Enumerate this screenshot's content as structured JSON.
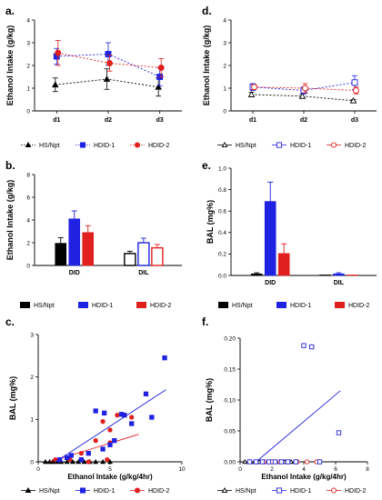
{
  "colors": {
    "hs": "#000000",
    "hdid1": "#1f22e0",
    "hdid2": "#e01f1f"
  },
  "panels": {
    "a": {
      "label": "a.",
      "ylabel": "Ethanol Intake (g/kg)",
      "yticks": [
        "0",
        "1",
        "2",
        "3",
        "4"
      ],
      "legend": [
        "HS/Npt",
        "HDID-1",
        "HDID-2"
      ]
    },
    "b": {
      "label": "b.",
      "ylabel": "Ethanol Intake (g/kg)",
      "yticks": [
        "0",
        "2",
        "4",
        "6",
        "8"
      ],
      "legend": [
        "HS/Npt",
        "HDID-1",
        "HDID-2"
      ]
    },
    "c": {
      "label": "c.",
      "ylabel": "BAL (mg%)",
      "xlabel": "Ethanol Intake (g/kg/4hr)",
      "yticks": [
        "0",
        "1",
        "2",
        "3"
      ],
      "xticks": [
        "0",
        "5",
        "10"
      ],
      "legend": [
        "HS/Npt",
        "HDID-1",
        "HDID-2"
      ]
    },
    "d": {
      "label": "d.",
      "ylabel": "Ethanol Intake (g/kg)",
      "yticks": [
        "0",
        "1",
        "2",
        "3",
        "4"
      ],
      "legend": [
        "HS/Npt",
        "HDID-1",
        "HDID-2"
      ]
    },
    "e": {
      "label": "e.",
      "ylabel": "BAL (mg%)",
      "yticks": [
        "0.0",
        "0.2",
        "0.4",
        "0.6",
        "0.8",
        "1.0"
      ],
      "legend": [
        "HS/Npt",
        "HDID-1",
        "HDID-2"
      ]
    },
    "f": {
      "label": "f.",
      "ylabel": "BAL (mg%)",
      "xlabel": "Ethanol Intake (g/kg/4hr)",
      "yticks": [
        "0.00",
        "0.05",
        "0.10",
        "0.15",
        "0.20"
      ],
      "xticks": [
        "0",
        "2",
        "4",
        "6",
        "8"
      ],
      "legend": [
        "HS/Npt",
        "HDID-1",
        "HDID-2"
      ]
    }
  },
  "chart_data": [
    {
      "panel": "a",
      "type": "line",
      "categories": [
        "d1",
        "d2",
        "d3"
      ],
      "ylim": [
        0,
        4
      ],
      "series": [
        {
          "name": "HS/Npt",
          "values": [
            1.15,
            1.4,
            1.05
          ],
          "errors": [
            0.3,
            0.45,
            0.4
          ]
        },
        {
          "name": "HDID-1",
          "values": [
            2.4,
            2.5,
            1.5
          ],
          "errors": [
            0.35,
            0.5,
            0.4
          ]
        },
        {
          "name": "HDID-2",
          "values": [
            2.55,
            2.1,
            1.9
          ],
          "errors": [
            0.55,
            0.35,
            0.4
          ]
        }
      ]
    },
    {
      "panel": "b",
      "type": "bar",
      "categories": [
        "DID",
        "DIL"
      ],
      "ylim": [
        0,
        8
      ],
      "series": [
        {
          "name": "HS/Npt",
          "values": [
            1.95,
            1.05
          ],
          "errors": [
            0.5,
            0.2
          ]
        },
        {
          "name": "HDID-1",
          "values": [
            4.1,
            2.0
          ],
          "errors": [
            0.7,
            0.4
          ]
        },
        {
          "name": "HDID-2",
          "values": [
            2.9,
            1.55
          ],
          "errors": [
            0.6,
            0.3
          ]
        }
      ]
    },
    {
      "panel": "c",
      "type": "scatter",
      "xlim": [
        0,
        10
      ],
      "ylim": [
        0,
        3
      ],
      "series": [
        {
          "name": "HS/Npt",
          "points": [
            [
              0.5,
              0
            ],
            [
              0.8,
              0
            ],
            [
              1.0,
              0
            ],
            [
              1.3,
              0
            ],
            [
              1.6,
              0
            ],
            [
              2.0,
              0
            ],
            [
              2.4,
              0
            ],
            [
              2.8,
              0
            ],
            [
              3.2,
              0
            ],
            [
              3.6,
              0
            ],
            [
              4.0,
              0
            ],
            [
              4.5,
              0
            ],
            [
              5.0,
              0
            ]
          ],
          "fit": [
            [
              0.3,
              0
            ],
            [
              5.2,
              0
            ]
          ]
        },
        {
          "name": "HDID-1",
          "points": [
            [
              1.5,
              0.05
            ],
            [
              2.0,
              0.1
            ],
            [
              2.3,
              0.15
            ],
            [
              3.0,
              0.05
            ],
            [
              3.5,
              0.2
            ],
            [
              4.0,
              1.2
            ],
            [
              4.5,
              0.3
            ],
            [
              4.6,
              1.15
            ],
            [
              5.0,
              0.4
            ],
            [
              5.3,
              0.5
            ],
            [
              5.8,
              1.12
            ],
            [
              6.0,
              1.1
            ],
            [
              6.5,
              0.9
            ],
            [
              7.5,
              1.6
            ],
            [
              7.9,
              1.05
            ],
            [
              8.8,
              2.45
            ]
          ],
          "fit": [
            [
              1.2,
              0
            ],
            [
              8.9,
              1.7
            ]
          ]
        },
        {
          "name": "HDID-2",
          "points": [
            [
              1.2,
              0.05
            ],
            [
              2.2,
              0.05
            ],
            [
              3.0,
              0.2
            ],
            [
              3.5,
              0
            ],
            [
              4.0,
              0.5
            ],
            [
              4.5,
              0.95
            ],
            [
              5.0,
              0.75
            ],
            [
              5.0,
              0.45
            ],
            [
              5.5,
              1.1
            ],
            [
              6.5,
              1.05
            ],
            [
              4.8,
              0.05
            ]
          ],
          "fit": [
            [
              0.8,
              0
            ],
            [
              7.0,
              0.65
            ]
          ]
        }
      ]
    },
    {
      "panel": "d",
      "type": "line",
      "categories": [
        "d1",
        "d2",
        "d3"
      ],
      "ylim": [
        0,
        4
      ],
      "series": [
        {
          "name": "HS/Npt",
          "values": [
            0.72,
            0.65,
            0.45
          ],
          "errors": [
            0.1,
            0.1,
            0.05
          ]
        },
        {
          "name": "HDID-1",
          "values": [
            1.05,
            0.9,
            1.25
          ],
          "errors": [
            0.15,
            0.15,
            0.3
          ]
        },
        {
          "name": "HDID-2",
          "values": [
            1.05,
            1.0,
            0.9
          ],
          "errors": [
            0.1,
            0.2,
            0.15
          ]
        }
      ]
    },
    {
      "panel": "e",
      "type": "bar",
      "categories": [
        "DID",
        "DIL"
      ],
      "ylim": [
        0,
        1.0
      ],
      "series": [
        {
          "name": "HS/Npt",
          "values": [
            0.015,
            0.0
          ],
          "errors": [
            0.01,
            0.0
          ]
        },
        {
          "name": "HDID-1",
          "values": [
            0.69,
            0.015
          ],
          "errors": [
            0.18,
            0.01
          ]
        },
        {
          "name": "HDID-2",
          "values": [
            0.205,
            0.0
          ],
          "errors": [
            0.09,
            0.0
          ]
        }
      ]
    },
    {
      "panel": "f",
      "type": "scatter",
      "xlim": [
        0,
        8
      ],
      "ylim": [
        0,
        0.2
      ],
      "series": [
        {
          "name": "HS/Npt",
          "points": [
            [
              0.3,
              0
            ],
            [
              0.6,
              0
            ],
            [
              0.9,
              0
            ],
            [
              1.2,
              0
            ],
            [
              1.5,
              0
            ],
            [
              1.9,
              0
            ],
            [
              2.2,
              0
            ],
            [
              2.5,
              0
            ],
            [
              2.8,
              0
            ],
            [
              3.2,
              0
            ],
            [
              3.5,
              0
            ]
          ],
          "fit": null
        },
        {
          "name": "HDID-1",
          "points": [
            [
              0.6,
              0
            ],
            [
              1.0,
              0
            ],
            [
              1.4,
              0
            ],
            [
              1.8,
              0
            ],
            [
              2.2,
              0
            ],
            [
              2.6,
              0
            ],
            [
              3.0,
              0
            ],
            [
              3.5,
              0
            ],
            [
              4.0,
              0.188
            ],
            [
              4.5,
              0.186
            ],
            [
              6.2,
              0.047
            ],
            [
              5.0,
              0
            ]
          ],
          "fit": [
            [
              1.0,
              0
            ],
            [
              6.3,
              0.115
            ]
          ]
        },
        {
          "name": "HDID-2",
          "points": [
            [
              1.0,
              0
            ],
            [
              1.5,
              0
            ],
            [
              2.0,
              0
            ],
            [
              2.5,
              0
            ],
            [
              3.0,
              0
            ],
            [
              3.6,
              0
            ],
            [
              4.2,
              0
            ],
            [
              4.8,
              0
            ]
          ],
          "fit": null
        }
      ]
    }
  ]
}
